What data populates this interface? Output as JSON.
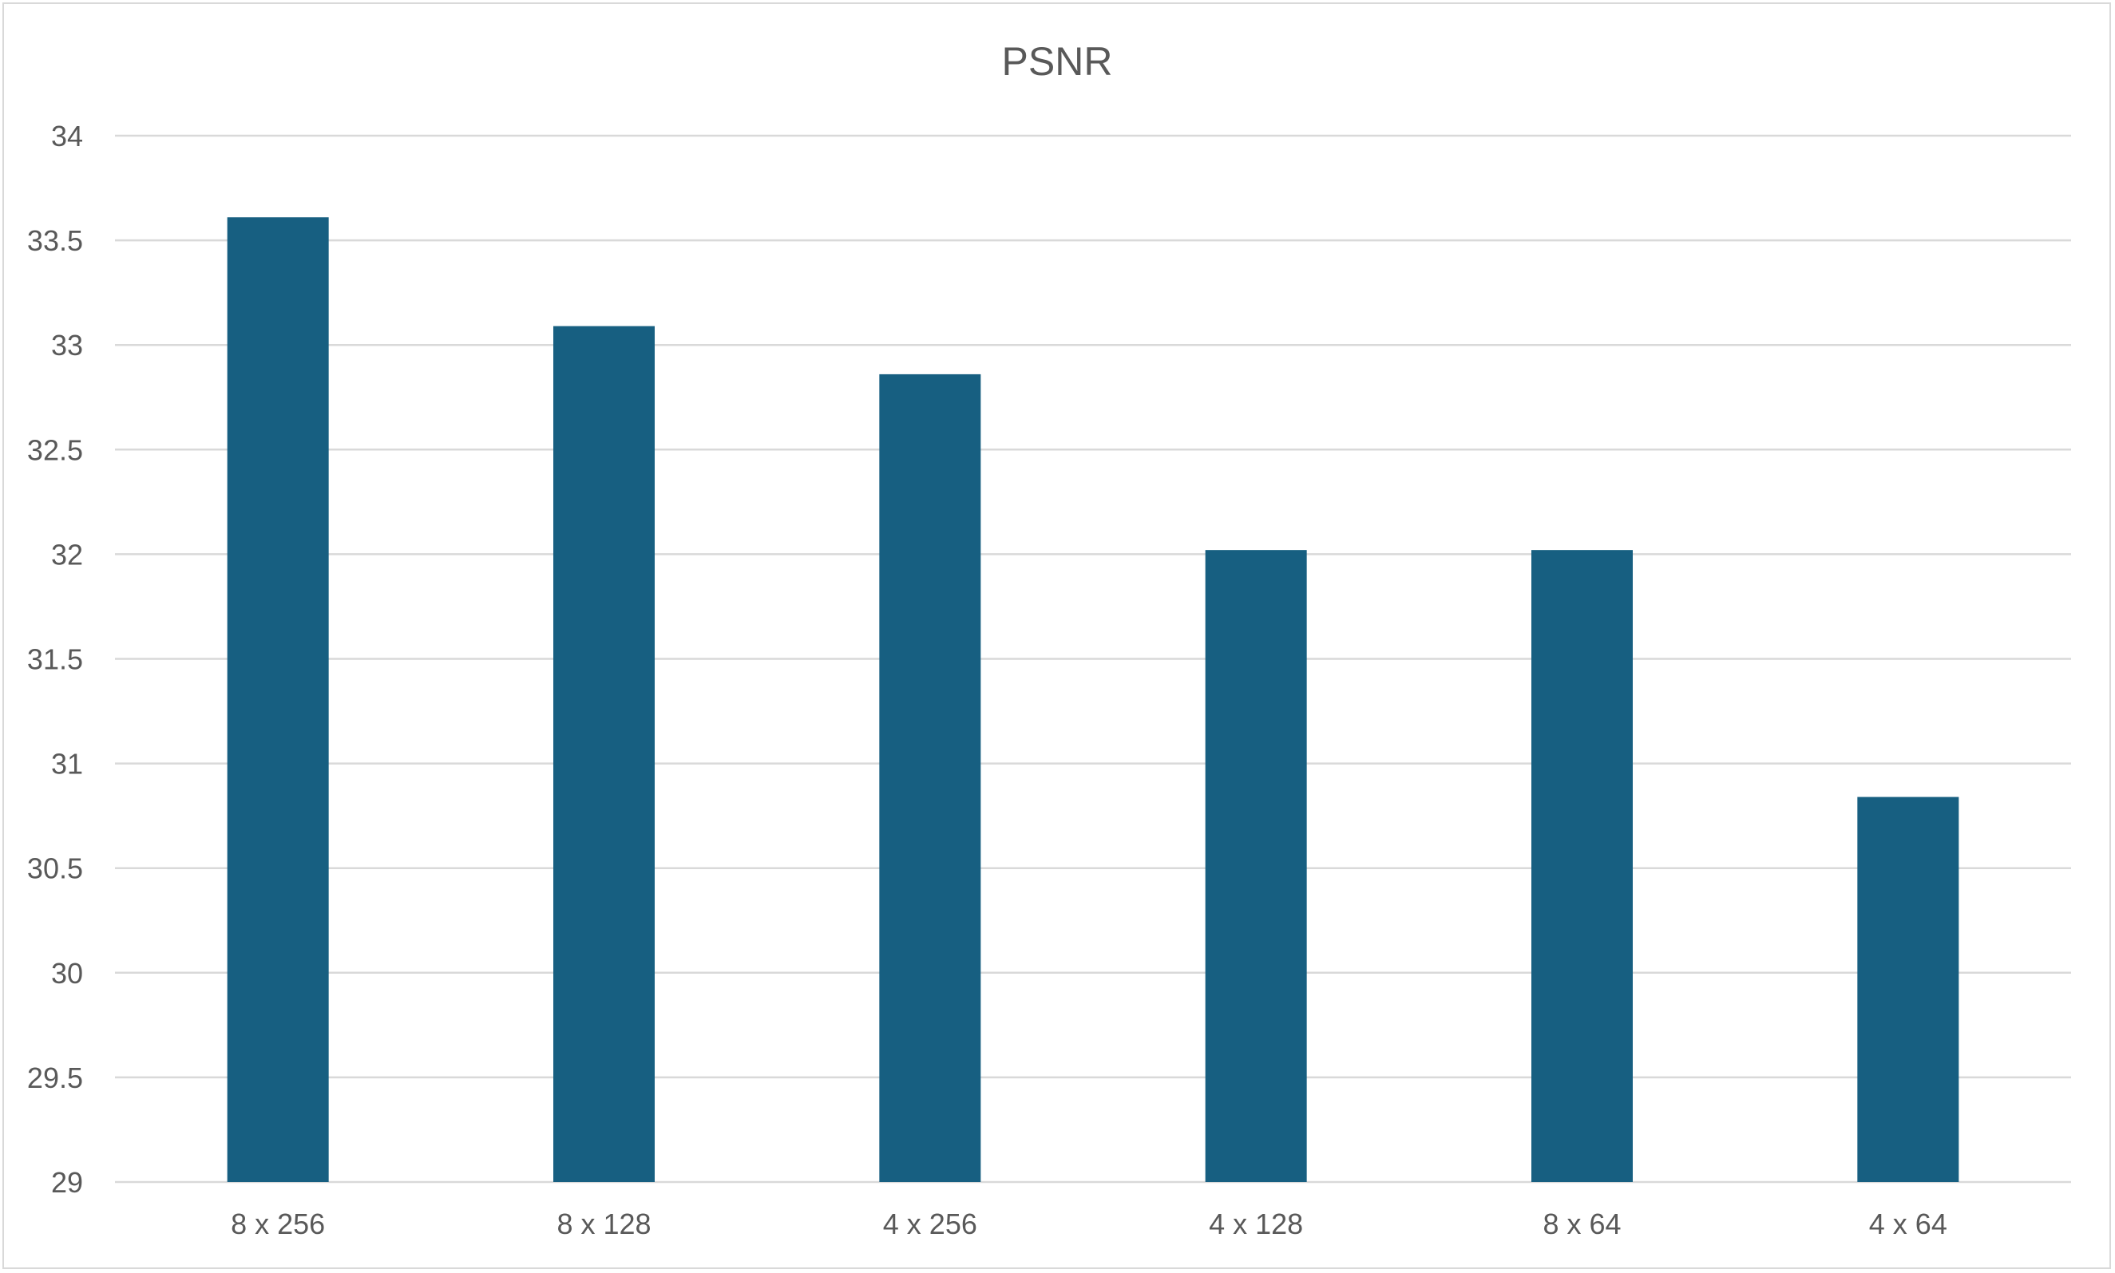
{
  "chart_data": {
    "type": "bar",
    "title": "PSNR",
    "categories": [
      "8 x 256",
      "8 x 128",
      "4 x 256",
      "4 x 128",
      "8 x 64",
      "4 x 64"
    ],
    "values": [
      33.61,
      33.09,
      32.86,
      32.02,
      32.02,
      30.84
    ],
    "ylim": [
      29,
      34
    ],
    "yticks": [
      "29",
      "29.5",
      "30",
      "30.5",
      "31",
      "31.5",
      "32",
      "32.5",
      "33",
      "33.5",
      "34"
    ],
    "grid": true,
    "legend": "none",
    "bar_color": "#175f81"
  }
}
